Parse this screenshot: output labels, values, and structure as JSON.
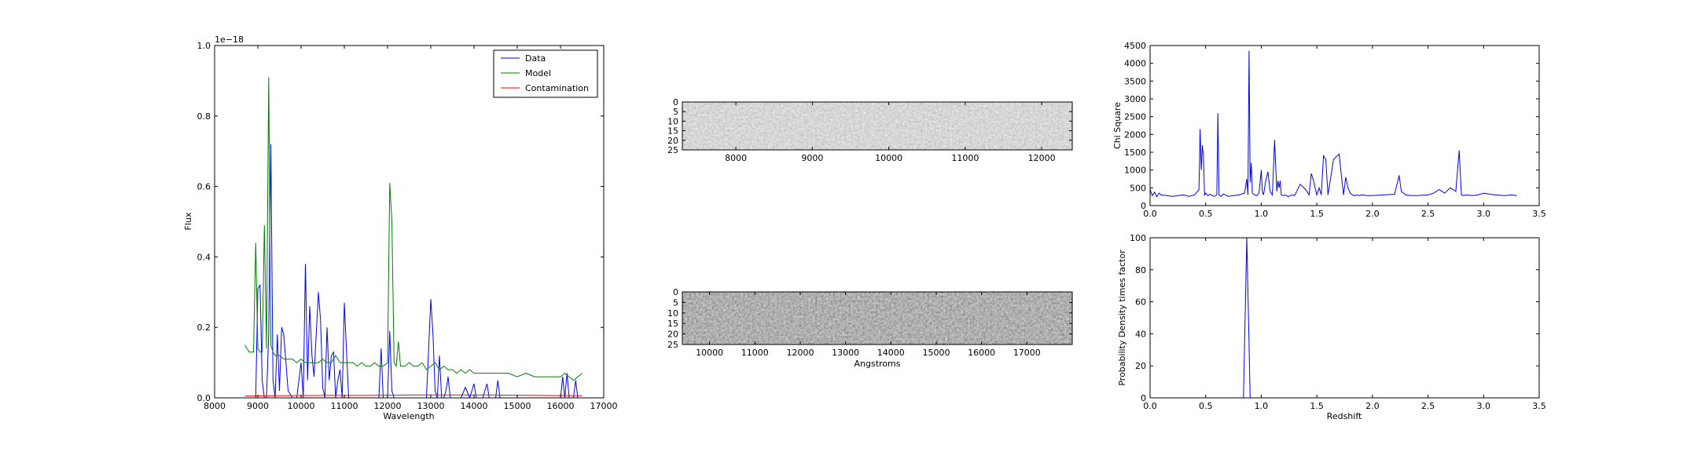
{
  "chart_data": [
    {
      "type": "line",
      "id": "spectrum",
      "xlabel": "Wavelength",
      "ylabel": "Flux",
      "offset_label": "1e−18",
      "xlim": [
        8000,
        17000
      ],
      "ylim": [
        0,
        1.0
      ],
      "xticks": [
        8000,
        9000,
        10000,
        11000,
        12000,
        13000,
        14000,
        15000,
        16000,
        17000
      ],
      "yticks": [
        0.0,
        0.2,
        0.4,
        0.6,
        0.8,
        1.0
      ],
      "legend_position": "top-right",
      "series": [
        {
          "name": "Data",
          "color": "#0000ff",
          "x": [
            8900,
            8950,
            9000,
            9050,
            9100,
            9150,
            9200,
            9250,
            9300,
            9350,
            9400,
            9450,
            9500,
            9550,
            9600,
            9700,
            9800,
            9900,
            10000,
            10050,
            10100,
            10150,
            10200,
            10250,
            10300,
            10400,
            10450,
            10500,
            10550,
            10600,
            10650,
            10700,
            10750,
            10800,
            10850,
            10900,
            10950,
            11000,
            11100,
            11150,
            11200,
            11250,
            11300,
            11400,
            11500,
            11600,
            11700,
            11800,
            11850,
            11900,
            12000,
            12050,
            12100,
            12150,
            12200,
            12250,
            12300,
            12400,
            12500,
            12600,
            12700,
            12800,
            12900,
            13000,
            13050,
            13100,
            13150,
            13200,
            13250,
            13300,
            13350,
            13400,
            13450,
            13500,
            13550,
            13600,
            13700,
            13800,
            13900,
            14000,
            14050,
            14100,
            14150,
            14200,
            14250,
            14300,
            14350,
            14400,
            14450,
            14500,
            14550,
            14600,
            14700,
            14750,
            14800,
            14850,
            14900,
            15000,
            15200,
            15400,
            15600,
            15800,
            16000,
            16050,
            16100,
            16150,
            16200,
            16250,
            16300,
            16350,
            16400,
            16450,
            16500
          ],
          "y": [
            0.0,
            0.0,
            0.31,
            0.32,
            0.05,
            0.0,
            0.0,
            0.18,
            0.72,
            0.05,
            0.0,
            0.18,
            0.02,
            0.2,
            0.18,
            0.02,
            0.0,
            0.0,
            0.1,
            0.0,
            0.38,
            0.05,
            0.26,
            0.12,
            0.06,
            0.3,
            0.22,
            0.03,
            0.0,
            0.2,
            0.05,
            0.12,
            0.13,
            0.0,
            0.05,
            0.08,
            0.0,
            0.27,
            0.0,
            0.0,
            0.0,
            0.0,
            0.0,
            0.0,
            0.0,
            0.0,
            0.0,
            0.0,
            0.14,
            0.0,
            0.0,
            0.19,
            0.02,
            0.0,
            0.0,
            0.0,
            0.0,
            0.0,
            0.0,
            0.0,
            0.0,
            0.0,
            0.0,
            0.28,
            0.18,
            0.02,
            0.0,
            0.12,
            0.0,
            0.0,
            0.02,
            0.06,
            0.0,
            0.0,
            0.0,
            0.0,
            0.0,
            0.03,
            0.0,
            0.04,
            0.0,
            0.0,
            0.0,
            0.0,
            0.02,
            0.04,
            0.0,
            0.0,
            0.0,
            0.0,
            0.05,
            0.0,
            0.0,
            0.0,
            0.0,
            0.0,
            0.0,
            0.0,
            0.0,
            0.0,
            0.0,
            0.0,
            0.0,
            0.06,
            0.0,
            0.07,
            0.0,
            0.0,
            0.0,
            0.05,
            0.0,
            0.0,
            0.0
          ]
        },
        {
          "name": "Model",
          "color": "#007f00",
          "x": [
            8700,
            8800,
            8900,
            8950,
            9000,
            9050,
            9100,
            9150,
            9200,
            9250,
            9300,
            9350,
            9400,
            9500,
            9600,
            9700,
            9800,
            9900,
            10000,
            10100,
            10200,
            10300,
            10400,
            10500,
            10600,
            10700,
            10800,
            10900,
            11000,
            11100,
            11200,
            11300,
            11400,
            11500,
            11600,
            11700,
            11800,
            11900,
            12000,
            12050,
            12100,
            12150,
            12200,
            12250,
            12300,
            12400,
            12500,
            12600,
            12700,
            12800,
            12900,
            13000,
            13100,
            13200,
            13300,
            13400,
            13500,
            13600,
            13700,
            13800,
            13900,
            14000,
            14200,
            14400,
            14600,
            14800,
            15000,
            15200,
            15400,
            15600,
            15800,
            16000,
            16100,
            16200,
            16300,
            16400,
            16500
          ],
          "y": [
            0.15,
            0.13,
            0.13,
            0.44,
            0.14,
            0.13,
            0.13,
            0.49,
            0.14,
            0.91,
            0.15,
            0.13,
            0.12,
            0.12,
            0.11,
            0.11,
            0.11,
            0.1,
            0.11,
            0.1,
            0.1,
            0.1,
            0.1,
            0.11,
            0.1,
            0.1,
            0.12,
            0.1,
            0.1,
            0.1,
            0.1,
            0.09,
            0.1,
            0.09,
            0.09,
            0.1,
            0.09,
            0.09,
            0.1,
            0.61,
            0.5,
            0.1,
            0.09,
            0.16,
            0.09,
            0.09,
            0.1,
            0.09,
            0.09,
            0.1,
            0.08,
            0.09,
            0.1,
            0.08,
            0.09,
            0.08,
            0.08,
            0.07,
            0.08,
            0.07,
            0.08,
            0.07,
            0.07,
            0.07,
            0.07,
            0.07,
            0.06,
            0.07,
            0.06,
            0.06,
            0.06,
            0.06,
            0.07,
            0.06,
            0.05,
            0.06,
            0.07
          ]
        },
        {
          "name": "Contamination",
          "color": "#ff0000",
          "x": [
            8700,
            9500,
            10500,
            11500,
            12500,
            13500,
            14500,
            15500,
            16500
          ],
          "y": [
            0.005,
            0.006,
            0.007,
            0.007,
            0.008,
            0.008,
            0.008,
            0.007,
            0.006
          ]
        }
      ]
    },
    {
      "type": "heatmap",
      "id": "spectrum-2d-top",
      "xlim": [
        7300,
        12400
      ],
      "ylim": [
        0,
        25
      ],
      "xticks": [
        8000,
        9000,
        10000,
        11000,
        12000
      ],
      "yticks": [
        0,
        5,
        10,
        15,
        20,
        25
      ],
      "colormap": "gray",
      "background": "#a9a9a9"
    },
    {
      "type": "heatmap",
      "id": "spectrum-2d-bottom",
      "xlabel": "Angstroms",
      "xlim": [
        9400,
        18000
      ],
      "ylim": [
        0,
        25
      ],
      "xticks": [
        10000,
        11000,
        12000,
        13000,
        14000,
        15000,
        16000,
        17000
      ],
      "yticks": [
        0,
        5,
        10,
        15,
        20,
        25
      ],
      "colormap": "gray",
      "background": "#6a6a6a"
    },
    {
      "type": "line",
      "id": "chi-square",
      "ylabel": "Chi Square",
      "xlim": [
        0.0,
        3.5
      ],
      "ylim": [
        0,
        4500
      ],
      "xticks": [
        0.0,
        0.5,
        1.0,
        1.5,
        2.0,
        2.5,
        3.0,
        3.5
      ],
      "yticks": [
        0,
        500,
        1000,
        1500,
        2000,
        2500,
        3000,
        3500,
        4000,
        4500
      ],
      "series": [
        {
          "color": "#0000ff",
          "x": [
            0.0,
            0.02,
            0.04,
            0.06,
            0.08,
            0.1,
            0.15,
            0.2,
            0.25,
            0.3,
            0.35,
            0.4,
            0.44,
            0.45,
            0.46,
            0.47,
            0.48,
            0.49,
            0.5,
            0.52,
            0.54,
            0.56,
            0.58,
            0.6,
            0.61,
            0.62,
            0.64,
            0.66,
            0.7,
            0.75,
            0.8,
            0.85,
            0.87,
            0.88,
            0.89,
            0.9,
            0.91,
            0.92,
            0.94,
            0.96,
            0.98,
            1.0,
            1.01,
            1.02,
            1.04,
            1.06,
            1.08,
            1.1,
            1.12,
            1.14,
            1.15,
            1.16,
            1.17,
            1.18,
            1.2,
            1.22,
            1.24,
            1.26,
            1.28,
            1.3,
            1.35,
            1.4,
            1.43,
            1.45,
            1.47,
            1.5,
            1.52,
            1.54,
            1.56,
            1.58,
            1.6,
            1.65,
            1.7,
            1.74,
            1.76,
            1.78,
            1.8,
            1.82,
            1.84,
            1.86,
            1.88,
            1.9,
            1.92,
            1.94,
            1.96,
            2.0,
            2.1,
            2.2,
            2.24,
            2.26,
            2.28,
            2.3,
            2.35,
            2.4,
            2.5,
            2.55,
            2.6,
            2.65,
            2.7,
            2.75,
            2.78,
            2.8,
            2.82,
            2.84,
            2.9,
            2.95,
            3.0,
            3.1,
            3.2,
            3.25,
            3.3
          ],
          "y": [
            450,
            280,
            380,
            250,
            350,
            300,
            280,
            260,
            280,
            300,
            260,
            300,
            450,
            2150,
            1000,
            1700,
            1400,
            300,
            350,
            280,
            320,
            280,
            260,
            300,
            2600,
            300,
            260,
            330,
            260,
            280,
            300,
            350,
            750,
            300,
            4350,
            650,
            1200,
            350,
            300,
            280,
            350,
            1000,
            400,
            300,
            700,
            950,
            400,
            300,
            1850,
            400,
            700,
            500,
            700,
            300,
            280,
            300,
            250,
            280,
            300,
            280,
            600,
            450,
            300,
            900,
            700,
            300,
            500,
            300,
            1400,
            1300,
            300,
            1300,
            1450,
            300,
            800,
            500,
            350,
            300,
            280,
            300,
            280,
            300,
            300,
            280,
            280,
            280,
            300,
            320,
            850,
            400,
            350,
            300,
            280,
            280,
            300,
            350,
            450,
            350,
            500,
            400,
            1550,
            300,
            280,
            300,
            280,
            300,
            350,
            300,
            280,
            300,
            280
          ]
        }
      ]
    },
    {
      "type": "line",
      "id": "probability",
      "xlabel": "Redshift",
      "ylabel": "Probability Density times factor",
      "xlim": [
        0.0,
        3.5
      ],
      "ylim": [
        0,
        100
      ],
      "xticks": [
        0.0,
        0.5,
        1.0,
        1.5,
        2.0,
        2.5,
        3.0,
        3.5
      ],
      "yticks": [
        0,
        20,
        40,
        60,
        80,
        100
      ],
      "series": [
        {
          "color": "#0000ff",
          "x": [
            0.0,
            0.84,
            0.855,
            0.87,
            0.885,
            0.9,
            3.3
          ],
          "y": [
            0,
            0,
            50,
            100,
            50,
            0,
            0
          ]
        }
      ]
    }
  ]
}
